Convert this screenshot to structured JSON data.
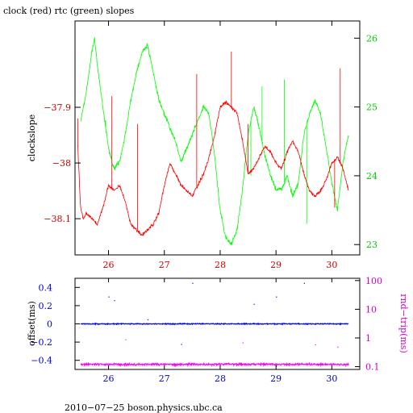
{
  "chart_data": [
    {
      "type": "line",
      "title": "clock (red) rtc (green) slopes",
      "ylabel": "clockslope",
      "x_ticks": [
        26,
        27,
        28,
        29,
        30
      ],
      "xlim": [
        25.4,
        30.5
      ],
      "y_left_ticks": [
        -37.9,
        -38,
        -38.1
      ],
      "y_left_tick_labels": [
        "−37.9",
        "−38",
        "−38.1"
      ],
      "y_left_lim": [
        -38.165,
        -37.745
      ],
      "y_right_ticks": [
        23,
        24,
        25,
        26
      ],
      "y_right_lim": [
        22.85,
        26.25
      ],
      "colors": {
        "clock": "#ff0000",
        "rtc": "#00ff00",
        "left_axis": "#cc0000",
        "right_axis": "#00cc00"
      },
      "series": [
        {
          "axis": "left",
          "x": [
            25.45,
            25.5,
            25.55,
            25.6,
            25.7,
            25.8,
            25.9,
            26.0,
            26.1,
            26.2,
            26.3,
            26.4,
            26.5,
            26.6,
            26.7,
            26.8,
            26.9,
            27.0,
            27.1,
            27.2,
            27.3,
            27.4,
            27.5,
            27.6,
            27.7,
            27.8,
            27.9,
            28.0,
            28.1,
            28.2,
            28.3,
            28.4,
            28.5,
            28.6,
            28.7,
            28.8,
            28.9,
            29.0,
            29.1,
            29.2,
            29.3,
            29.4,
            29.5,
            29.6,
            29.7,
            29.8,
            29.9,
            30.0,
            30.1,
            30.2,
            30.3
          ],
          "y": [
            -37.97,
            -38.08,
            -38.1,
            -38.09,
            -38.1,
            -38.11,
            -38.08,
            -38.04,
            -38.05,
            -38.04,
            -38.07,
            -38.11,
            -38.12,
            -38.13,
            -38.12,
            -38.11,
            -38.09,
            -38.04,
            -38.0,
            -38.02,
            -38.04,
            -38.05,
            -38.06,
            -38.04,
            -38.02,
            -37.99,
            -37.95,
            -37.9,
            -37.89,
            -37.9,
            -37.91,
            -37.96,
            -38.02,
            -38.01,
            -37.99,
            -37.97,
            -37.98,
            -38.0,
            -38.01,
            -37.98,
            -37.96,
            -37.98,
            -38.02,
            -38.05,
            -38.06,
            -38.05,
            -38.03,
            -38.0,
            -37.99,
            -38.01,
            -38.05
          ],
          "spikes": [
            [
              25.45,
              -37.92
            ],
            [
              26.06,
              -37.88
            ],
            [
              26.52,
              -37.93
            ],
            [
              27.58,
              -37.84
            ],
            [
              28.2,
              -37.8
            ],
            [
              28.5,
              -37.93
            ],
            [
              30.05,
              -38.08
            ],
            [
              30.15,
              -37.83
            ]
          ]
        },
        {
          "axis": "right",
          "x": [
            25.5,
            25.6,
            25.7,
            25.75,
            25.8,
            25.9,
            26.0,
            26.1,
            26.2,
            26.3,
            26.4,
            26.5,
            26.6,
            26.7,
            26.75,
            26.8,
            26.9,
            27.0,
            27.1,
            27.2,
            27.3,
            27.4,
            27.5,
            27.6,
            27.7,
            27.8,
            27.9,
            28.0,
            28.1,
            28.2,
            28.3,
            28.4,
            28.5,
            28.6,
            28.7,
            28.8,
            28.9,
            29.0,
            29.1,
            29.2,
            29.3,
            29.4,
            29.5,
            29.6,
            29.7,
            29.8,
            29.9,
            30.0,
            30.1,
            30.2,
            30.3
          ],
          "y": [
            24.8,
            25.2,
            25.8,
            26.0,
            25.6,
            25.0,
            24.4,
            24.1,
            24.2,
            24.6,
            25.1,
            25.5,
            25.8,
            25.9,
            25.7,
            25.5,
            25.1,
            24.9,
            24.7,
            24.5,
            24.2,
            24.4,
            24.6,
            24.8,
            25.0,
            24.9,
            24.3,
            23.5,
            23.1,
            23.0,
            23.2,
            23.8,
            24.6,
            25.0,
            24.7,
            24.3,
            24.0,
            23.8,
            23.8,
            24.0,
            23.7,
            23.9,
            24.6,
            24.9,
            25.1,
            24.9,
            24.4,
            23.9,
            23.5,
            24.2,
            24.6
          ],
          "spikes": [
            [
              25.95,
              24.8
            ],
            [
              28.55,
              24.0
            ],
            [
              28.75,
              25.3
            ],
            [
              29.15,
              25.4
            ],
            [
              29.55,
              23.3
            ]
          ]
        }
      ]
    },
    {
      "type": "scatter",
      "ylabel": "offset(ms)",
      "ylabel_right": "rnd−trip(ms)",
      "x_ticks": [
        26,
        27,
        28,
        29,
        30
      ],
      "xlim": [
        25.4,
        30.5
      ],
      "y_left_ticks": [
        0.4,
        0.2,
        0,
        -0.2,
        -0.4
      ],
      "y_left_tick_labels": [
        "0.4",
        "0.2",
        "0",
        "−0.2",
        "−0.4"
      ],
      "y_left_lim": [
        -0.5,
        0.5
      ],
      "y_right_ticks": [
        100,
        10,
        1,
        0.1
      ],
      "y_right_tick_labels": [
        "100",
        "10",
        "1",
        "0.1"
      ],
      "y_right_scale": "log",
      "y_right_lim": [
        0.08,
        120
      ],
      "colors": {
        "offset": "#0000ff",
        "roundtrip": "#ff00ff",
        "left_axis": "#0000cc",
        "right_axis": "#cc00cc"
      },
      "offset_level": 0.0,
      "roundtrip_level": 0.12,
      "outliers_offset": [
        [
          26.0,
          0.3
        ],
        [
          26.1,
          0.26
        ],
        [
          27.3,
          -0.22
        ],
        [
          28.6,
          0.22
        ],
        [
          29.0,
          0.3
        ],
        [
          29.5,
          0.45
        ],
        [
          27.5,
          0.45
        ],
        [
          26.7,
          0.05
        ]
      ],
      "outliers_roundtrip": [
        [
          26.3,
          0.9
        ],
        [
          28.4,
          0.7
        ],
        [
          29.7,
          0.6
        ],
        [
          30.1,
          0.5
        ]
      ]
    }
  ],
  "footer": "2010−07−25  boson.physics.ubc.ca"
}
